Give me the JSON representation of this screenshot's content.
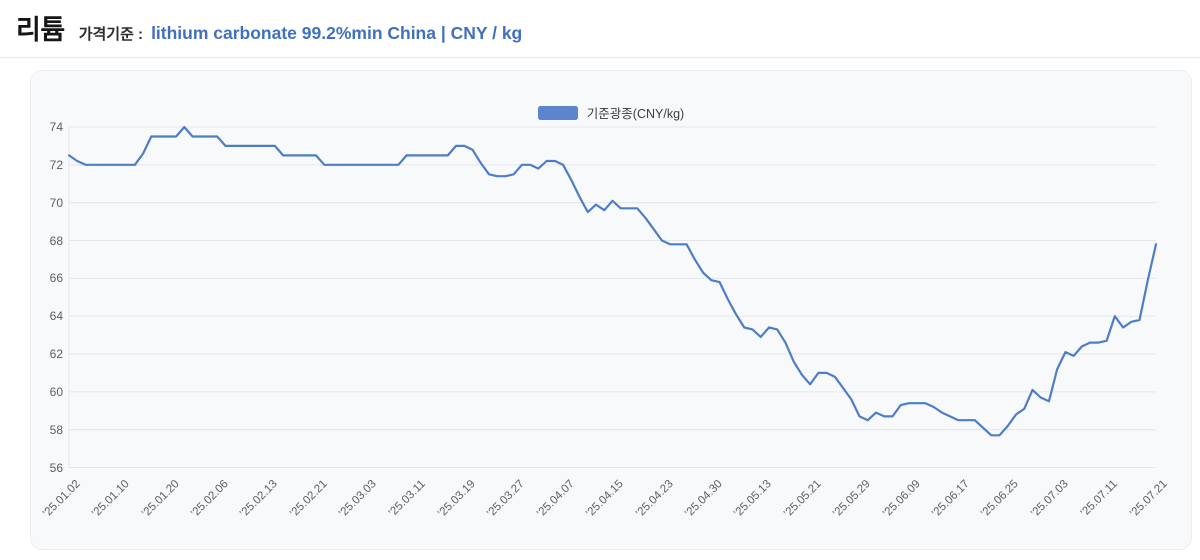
{
  "header": {
    "title": "리튬",
    "price_basis_label": "가격기준 :",
    "price_basis_value": "lithium carbonate 99.2%min China | CNY / kg"
  },
  "legend": {
    "series_label": "기준광종(CNY/kg)"
  },
  "colors": {
    "accent_text": "#4170c0",
    "line": "#4e7dc8",
    "legend_swatch": "#5b86ce",
    "grid": "#e5e7eb",
    "axis_text": "#5a5d63",
    "card_bg": "#f8f9fb"
  },
  "chart_data": {
    "type": "line",
    "title": "리튬 — lithium carbonate 99.2%min China (CNY/kg)",
    "series_name": "기준광종(CNY/kg)",
    "ylabel": "",
    "xlabel": "",
    "ylim": [
      56,
      74
    ],
    "y_ticks": [
      74,
      72,
      70,
      68,
      66,
      64,
      62,
      60,
      58,
      56
    ],
    "grid": "horizontal-only",
    "legend_position": "top-center",
    "x_tick_every": 6,
    "x_tick_labels": [
      "’25.01.02",
      "’25.01.10",
      "’25.01.20",
      "’25.02.06",
      "’25.02.13",
      "’25.02.21",
      "’25.03.03",
      "’25.03.11",
      "’25.03.19",
      "’25.03.27",
      "’25.04.07",
      "’25.04.15",
      "’25.04.23",
      "’25.04.30",
      "’25.05.13",
      "’25.05.21",
      "’25.05.29",
      "’25.06.09",
      "’25.06.17",
      "’25.06.25",
      "’25.07.03",
      "’25.07.11",
      "’25.07.21"
    ],
    "values": [
      72.5,
      72.2,
      72.0,
      72.0,
      72.0,
      72.0,
      72.0,
      72.0,
      72.0,
      72.6,
      73.5,
      73.5,
      73.5,
      73.5,
      74.0,
      73.5,
      73.5,
      73.5,
      73.5,
      73.0,
      73.0,
      73.0,
      73.0,
      73.0,
      73.0,
      73.0,
      72.5,
      72.5,
      72.5,
      72.5,
      72.5,
      72.0,
      72.0,
      72.0,
      72.0,
      72.0,
      72.0,
      72.0,
      72.0,
      72.0,
      72.0,
      72.5,
      72.5,
      72.5,
      72.5,
      72.5,
      72.5,
      73.0,
      73.0,
      72.8,
      72.1,
      71.5,
      71.4,
      71.4,
      71.5,
      72.0,
      72.0,
      71.8,
      72.2,
      72.2,
      72.0,
      71.2,
      70.3,
      69.5,
      69.9,
      69.6,
      70.1,
      69.7,
      69.7,
      69.7,
      69.2,
      68.6,
      68.0,
      67.8,
      67.8,
      67.8,
      67.0,
      66.3,
      65.9,
      65.8,
      64.9,
      64.1,
      63.4,
      63.3,
      62.9,
      63.4,
      63.3,
      62.6,
      61.6,
      60.9,
      60.4,
      61.0,
      61.0,
      60.8,
      60.2,
      59.6,
      58.7,
      58.5,
      58.9,
      58.7,
      58.7,
      59.3,
      59.4,
      59.4,
      59.4,
      59.2,
      58.9,
      58.7,
      58.5,
      58.5,
      58.5,
      58.1,
      57.7,
      57.7,
      58.2,
      58.8,
      59.1,
      60.1,
      59.7,
      59.5,
      61.2,
      62.1,
      61.9,
      62.4,
      62.6,
      62.6,
      62.7,
      64.0,
      63.4,
      63.7,
      63.8,
      65.9,
      67.8
    ]
  }
}
